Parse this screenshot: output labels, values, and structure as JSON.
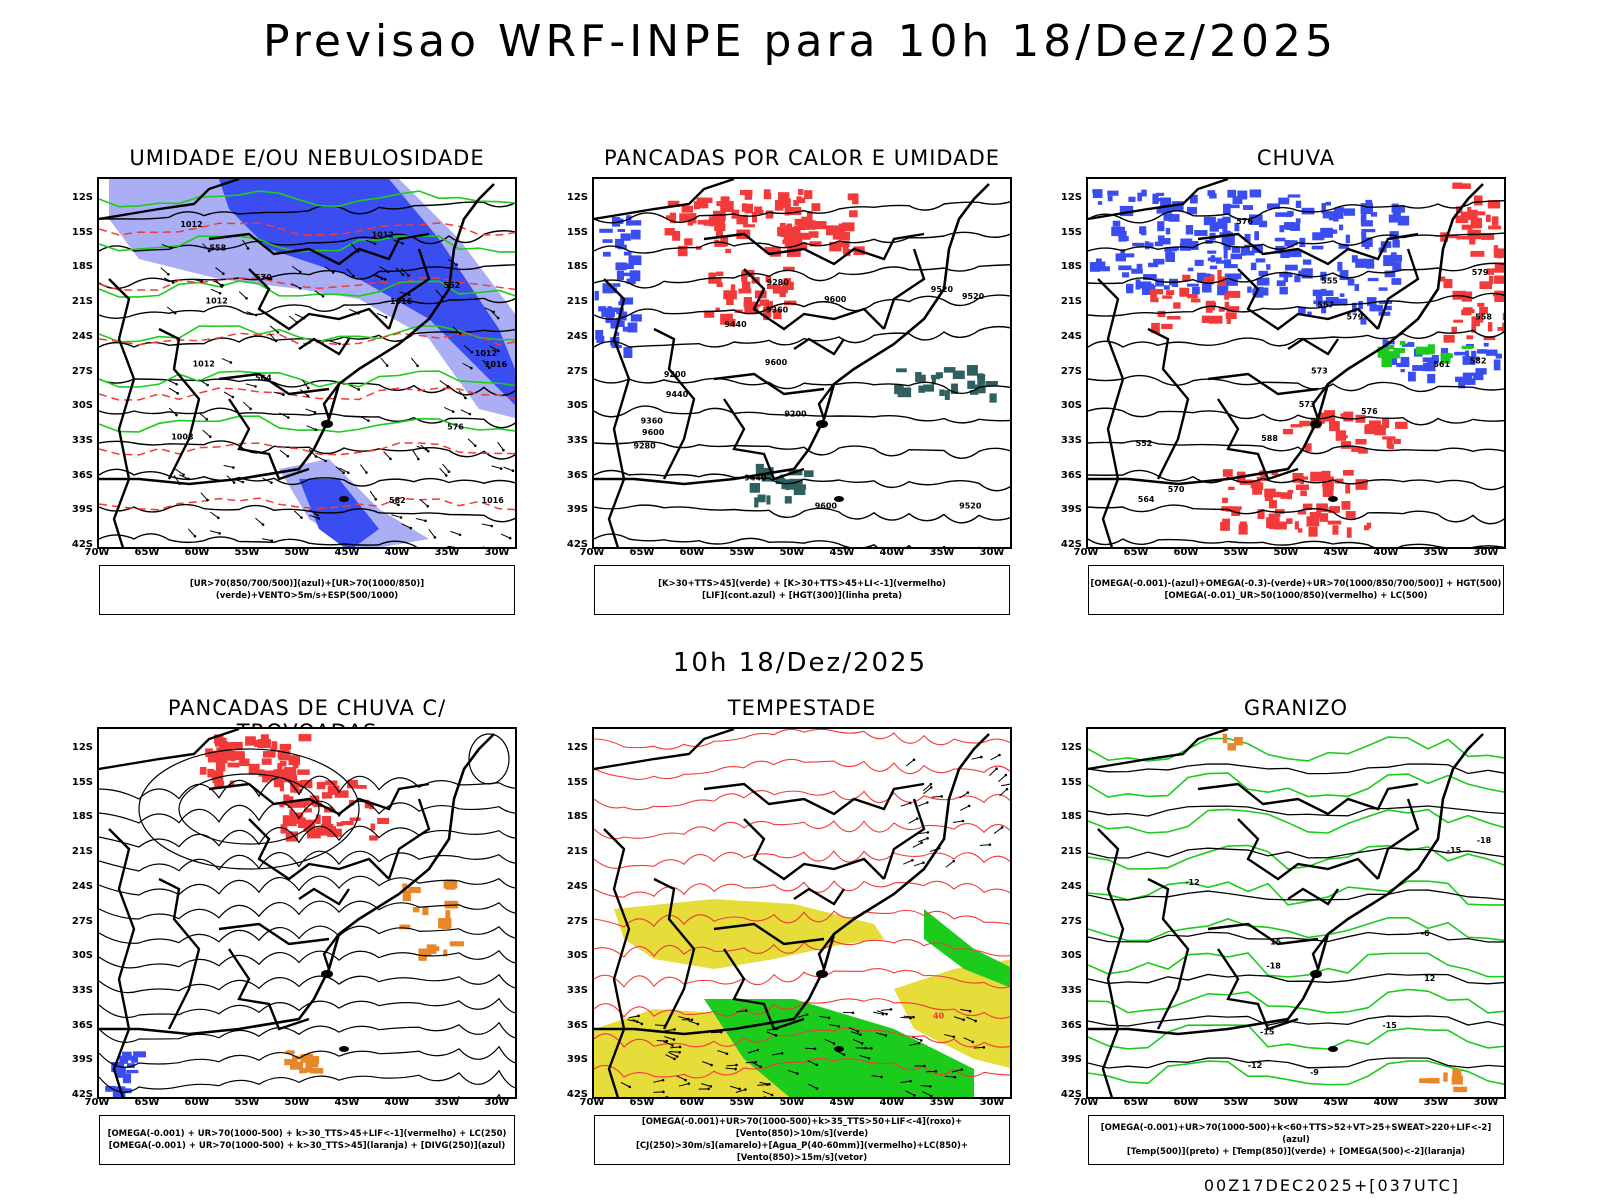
{
  "title": "Previsao WRF-INPE  para 10h 18/Dez/2025",
  "subtitle": "10h 18/Dez/2025",
  "footer": "00Z17DEC2025+[037UTC]",
  "lat_labels": [
    "12S",
    "15S",
    "18S",
    "21S",
    "24S",
    "27S",
    "30S",
    "33S",
    "36S",
    "39S",
    "42S"
  ],
  "lon_labels": [
    "70W",
    "65W",
    "60W",
    "55W",
    "50W",
    "45W",
    "40W",
    "35W",
    "30W"
  ],
  "colors": {
    "blue": "#3a4df0",
    "lightblue": "#a9aef5",
    "green": "#1ccc1c",
    "red": "#f23a3a",
    "orange": "#e8862a",
    "yellow": "#e6dc3a",
    "darkteal": "#2f5f5f"
  },
  "panels": [
    {
      "title": "UMIDADE E/OU NEBULOSIDADE",
      "legend": [
        "[UR>70(850/700/500)](azul)+[UR>70(1000/850)](verde)+VENTO>5m/s+ESP(500/1000)"
      ],
      "labels": [
        "1012",
        "1012",
        "1012",
        "1012",
        "1016",
        "1016",
        "1016",
        "1008",
        "1012",
        "576",
        "582",
        "564",
        "558",
        "552",
        "570"
      ]
    },
    {
      "title": "PANCADAS POR CALOR E UMIDADE",
      "legend": [
        "[K>30+TTS>45](verde) + [K>30+TTS>45+LI<-1](vermelho)",
        "[LIF](cont.azul) + [HGT(300)](linha preta)"
      ],
      "labels": [
        "9600",
        "9600",
        "9520",
        "9600",
        "9600",
        "9520",
        "9520",
        "9440",
        "9440",
        "9440",
        "9360",
        "9360",
        "9280",
        "9280",
        "9200",
        "9200"
      ]
    },
    {
      "title": "CHUVA",
      "legend": [
        "[OMEGA(-0.001)-(azul)+OMEGA(-0.3)-(verde)+UR>70(1000/850/700/500)] + HGT(500)",
        "[OMEGA(-0.01)_UR>50(1000/850)(vermelho) + LC(500)"
      ],
      "labels": [
        "579",
        "579",
        "576",
        "573",
        "576",
        "573",
        "570",
        "567",
        "564",
        "561",
        "558",
        "555",
        "552",
        "582",
        "588"
      ]
    },
    {
      "title": "PANCADAS DE CHUVA C/ TROVOADAS",
      "legend": [
        "[OMEGA(-0.001) + UR>70(1000-500) + k>30_TTS>45+LIF<-1](vermelho) + LC(250)",
        "[OMEGA(-0.001) + UR>70(1000-500) + k>30_TTS>45](laranja) + [DIVG(250)](azul)"
      ],
      "labels": []
    },
    {
      "title": "TEMPESTADE",
      "legend": [
        "[OMEGA(-0.001)+UR>70(1000-500)+k>35_TTS>50+LIF<-4](roxo)+[Vento(850)>10m/s](verde)",
        "[CJ(250)>30m/s](amarelo)+[Agua_P(40-60mm)](vermelho)+LC(850)+[Vento(850)>15m/s](vetor)"
      ],
      "labels": [
        "40"
      ]
    },
    {
      "title": "GRANIZO",
      "legend": [
        "[OMEGA(-0.001)+UR>70(1000-500)+k<60+TTS>52+VT>25+SWEAT>220+LIF<-2](azul)",
        "[Temp(500)](preto) + [Temp(850)](verde) + [OMEGA(500)<-2](laranja)"
      ],
      "labels": [
        "-6",
        "-9",
        "-12",
        "-12",
        "-15",
        "-18",
        "-18",
        "-15",
        "-15",
        "12",
        "15"
      ]
    }
  ]
}
